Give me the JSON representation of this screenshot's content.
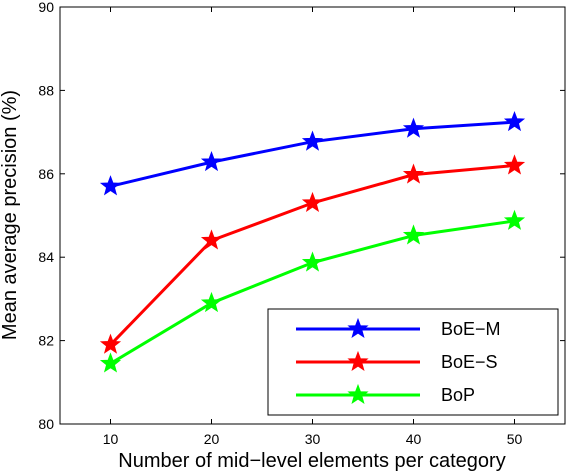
{
  "chart_data": {
    "type": "line",
    "xlabel": "Number of mid−level elements per category",
    "ylabel": "Mean average precision (%)",
    "x": [
      10,
      20,
      30,
      40,
      50
    ],
    "xticks": [
      10,
      20,
      30,
      40,
      50
    ],
    "yticks": [
      80,
      82,
      84,
      86,
      88,
      90
    ],
    "xlim": [
      5,
      55
    ],
    "ylim": [
      80,
      90
    ],
    "grid": false,
    "legend_position": "bottom-right",
    "marker": "star",
    "series": [
      {
        "name": "BoE−M",
        "color": "#0000ff",
        "values": [
          85.7,
          86.28,
          86.77,
          87.08,
          87.24
        ]
      },
      {
        "name": "BoE−S",
        "color": "#ff0000",
        "values": [
          81.9,
          84.4,
          85.3,
          85.98,
          86.2
        ]
      },
      {
        "name": "BoP",
        "color": "#00ff00",
        "values": [
          81.45,
          82.9,
          83.87,
          84.52,
          84.87
        ]
      }
    ]
  }
}
